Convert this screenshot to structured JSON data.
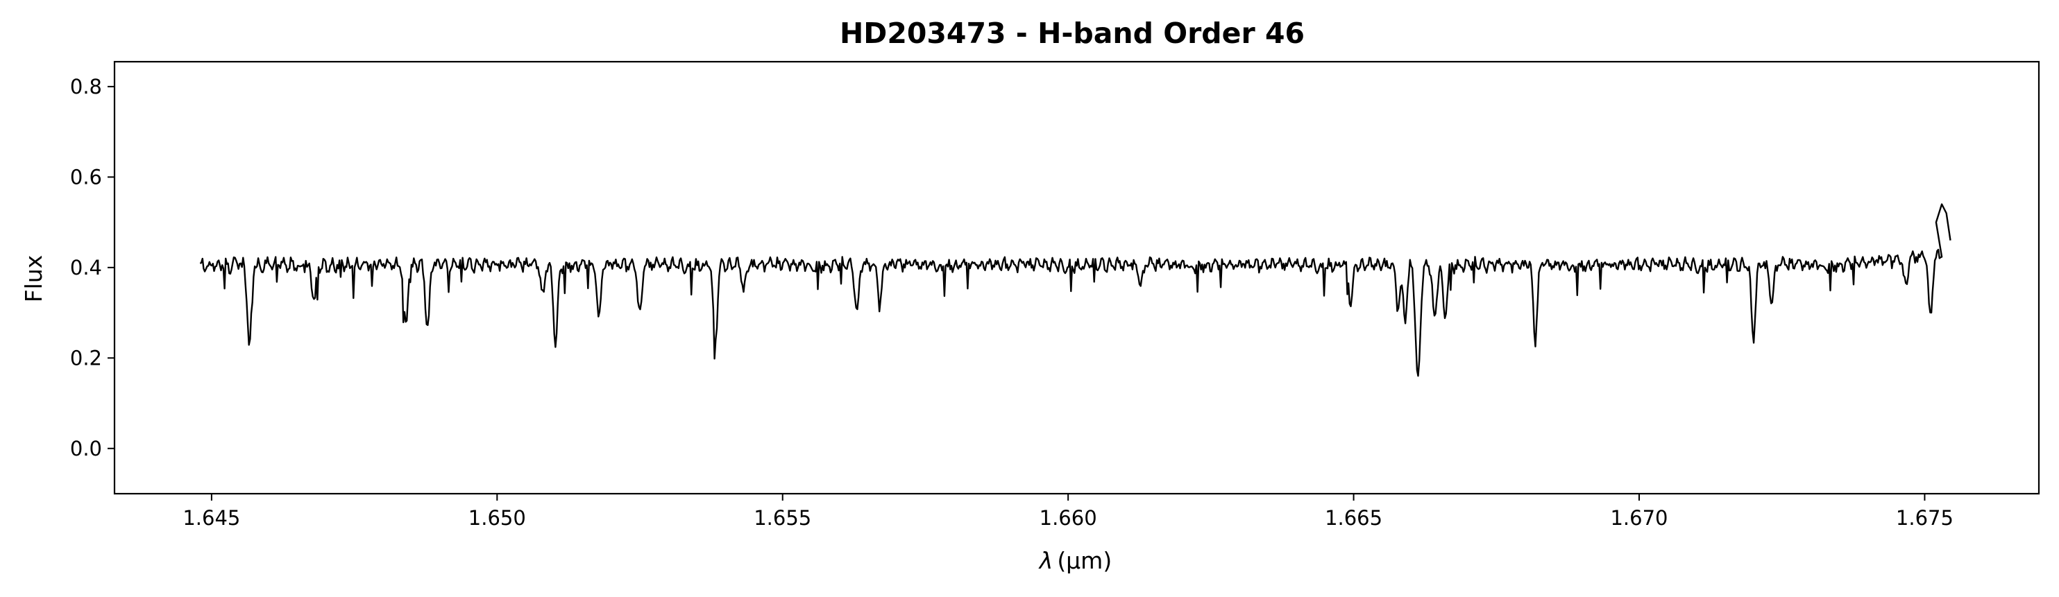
{
  "chart_data": {
    "type": "line",
    "title": "HD203473 - H-band Order 46",
    "xlabel_symbol": "λ",
    "xlabel_unit": "(μm)",
    "ylabel": "Flux",
    "xlim": [
      1.6433,
      1.677
    ],
    "ylim": [
      -0.1,
      0.855
    ],
    "xticks": [
      1.645,
      1.65,
      1.655,
      1.66,
      1.665,
      1.67,
      1.675
    ],
    "xtick_labels": [
      "1.645",
      "1.650",
      "1.655",
      "1.660",
      "1.665",
      "1.670",
      "1.675"
    ],
    "yticks": [
      0.0,
      0.2,
      0.4,
      0.6,
      0.8
    ],
    "ytick_labels": [
      "0.0",
      "0.2",
      "0.4",
      "0.6",
      "0.8"
    ],
    "grid": false,
    "series": [
      {
        "color": "#000000",
        "continuum": 0.405,
        "x_range": [
          1.6448,
          1.6753
        ],
        "absorption_lines": [
          {
            "x": 1.64566,
            "y": 0.23
          },
          {
            "x": 1.64679,
            "y": 0.32
          },
          {
            "x": 1.6484,
            "y": 0.265
          },
          {
            "x": 1.64878,
            "y": 0.26
          },
          {
            "x": 1.6508,
            "y": 0.34
          },
          {
            "x": 1.65102,
            "y": 0.23
          },
          {
            "x": 1.65178,
            "y": 0.29
          },
          {
            "x": 1.6525,
            "y": 0.29
          },
          {
            "x": 1.65382,
            "y": 0.23
          },
          {
            "x": 1.65432,
            "y": 0.35
          },
          {
            "x": 1.6563,
            "y": 0.3
          },
          {
            "x": 1.6567,
            "y": 0.32
          },
          {
            "x": 1.66127,
            "y": 0.36
          },
          {
            "x": 1.66495,
            "y": 0.32
          },
          {
            "x": 1.66578,
            "y": 0.31
          },
          {
            "x": 1.6659,
            "y": 0.28
          },
          {
            "x": 1.66615,
            "y": 0.28
          },
          {
            "x": 1.66642,
            "y": 0.28
          },
          {
            "x": 1.66611,
            "y": 0.225
          },
          {
            "x": 1.6666,
            "y": 0.3
          },
          {
            "x": 1.66818,
            "y": 0.24
          },
          {
            "x": 1.672,
            "y": 0.24
          },
          {
            "x": 1.67232,
            "y": 0.32
          },
          {
            "x": 1.67467,
            "y": 0.34
          },
          {
            "x": 1.6751,
            "y": 0.27
          }
        ],
        "edge_points": [
          {
            "x": 1.6752,
            "y": 0.5
          },
          {
            "x": 1.6753,
            "y": 0.54
          },
          {
            "x": 1.67538,
            "y": 0.52
          },
          {
            "x": 1.67545,
            "y": 0.46
          }
        ]
      }
    ]
  }
}
